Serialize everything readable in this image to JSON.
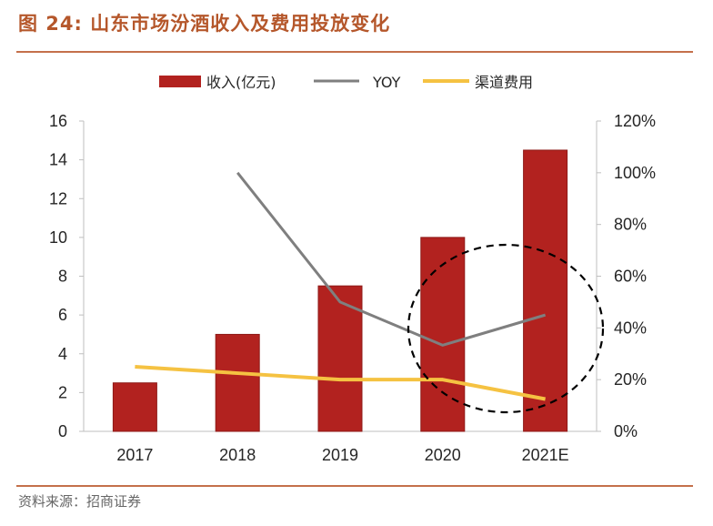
{
  "figure": {
    "label": "图 24:",
    "title": "山东市场汾酒收入及费用投放变化",
    "source": "资料来源：招商证券"
  },
  "colors": {
    "bar": "#b2221f",
    "yoy": "#7f7f7f",
    "channel": "#f5c242",
    "accent": "#b5572b"
  },
  "chart_data": {
    "type": "bar",
    "categories": [
      "2017",
      "2018",
      "2019",
      "2020",
      "2021E"
    ],
    "series": [
      {
        "name": "收入(亿元)",
        "kind": "bar",
        "axis": "left",
        "values": [
          2.5,
          5.0,
          7.5,
          10.0,
          14.5
        ]
      },
      {
        "name": "YOY",
        "kind": "line",
        "axis": "right",
        "values": [
          null,
          1.0,
          0.5,
          0.333,
          0.45
        ]
      },
      {
        "name": "渠道费用",
        "kind": "line",
        "axis": "right",
        "values": [
          0.25,
          0.225,
          0.2,
          0.2,
          0.125
        ]
      }
    ],
    "y_left": {
      "min": 0,
      "max": 16,
      "ticks": [
        "0",
        "2",
        "4",
        "6",
        "8",
        "10",
        "12",
        "14",
        "16"
      ]
    },
    "y_right": {
      "min": 0,
      "max": 1.2,
      "ticks": [
        "0%",
        "20%",
        "40%",
        "60%",
        "80%",
        "100%",
        "120%"
      ]
    },
    "legend": {
      "position": "top",
      "items": [
        "收入(亿元)",
        "YOY",
        "渠道费用"
      ]
    },
    "annotation": "dashed circle highlighting 2020-2021E"
  }
}
